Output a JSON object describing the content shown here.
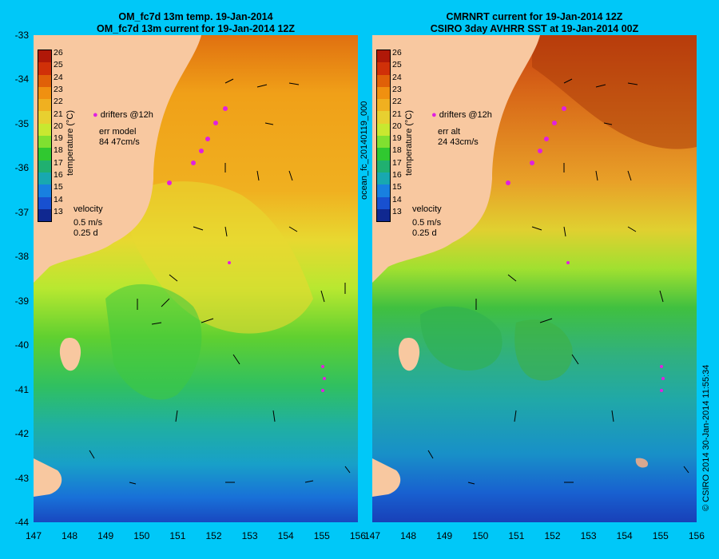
{
  "left": {
    "title_line1": "OM_fc7d 13m temp. 19-Jan-2014",
    "title_line2": "OM_fc7d 13m current for 19-Jan-2014 12Z",
    "colorbar_label": "temperature (°C)",
    "drifters_label": "drifters @12h",
    "err_line1": "err model",
    "err_line2": "84 47cm/s",
    "velocity_label": "velocity",
    "velocity_speed": "0.5 m/s",
    "velocity_time": "0.25 d"
  },
  "right": {
    "title_line1": "CMRNRT current for 19-Jan-2014 12Z",
    "title_line2": "CSIRO 3day AVHRR SST at 19-Jan-2014 00Z",
    "colorbar_label": "temperature (°C)",
    "drifters_label": "drifters @12h",
    "err_line1": "err alt",
    "err_line2": "24 43cm/s",
    "velocity_label": "velocity",
    "velocity_speed": "0.5 m/s",
    "velocity_time": "0.25 d"
  },
  "forecast_id": "ocean_fc_20140119_000",
  "copyright": "© CSIRO 2014   30-Jan-2014 11:55:34",
  "colorbar_ticks": [
    "26",
    "25",
    "24",
    "23",
    "22",
    "21",
    "20",
    "19",
    "18",
    "17",
    "16",
    "15",
    "14",
    "13"
  ],
  "colorbar_colors": [
    "#b01808",
    "#d03008",
    "#e06008",
    "#f09010",
    "#f0b020",
    "#e8d030",
    "#c8e830",
    "#80e030",
    "#30c830",
    "#20b070",
    "#18a8b0",
    "#1880e0",
    "#1850d0",
    "#102890"
  ],
  "lat_ticks": [
    "-33",
    "-34",
    "-35",
    "-36",
    "-37",
    "-38",
    "-39",
    "-40",
    "-41",
    "-42",
    "-43",
    "-44"
  ],
  "lon_ticks": [
    "147",
    "148",
    "149",
    "150",
    "151",
    "152",
    "153",
    "154",
    "155",
    "156"
  ],
  "colors": {
    "background": "#00c8f8",
    "land": "#f8c8a0",
    "drifter": "#e020e0"
  }
}
